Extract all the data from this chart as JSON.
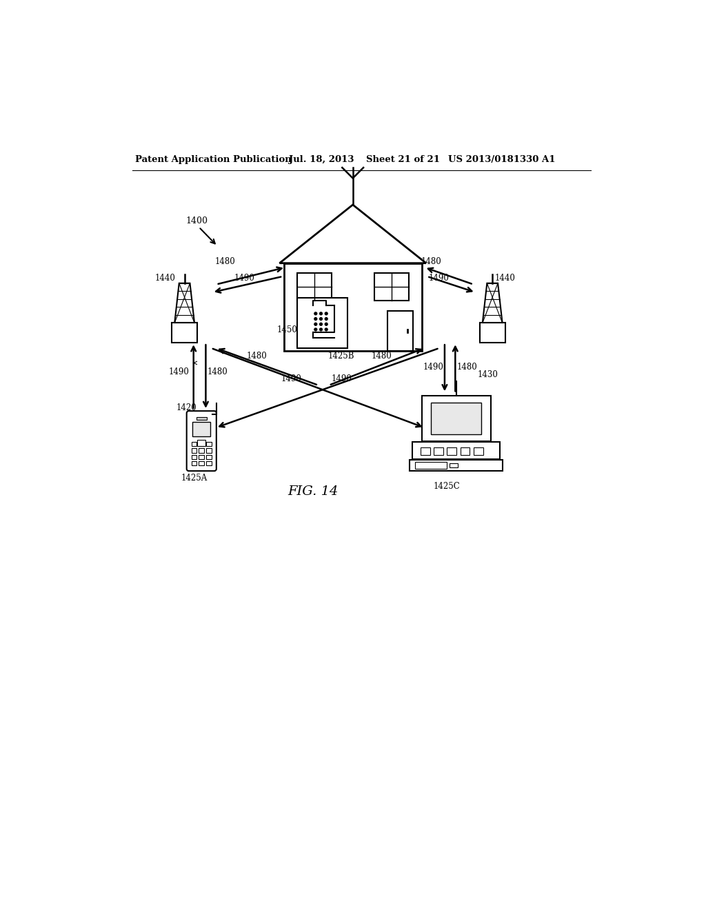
{
  "bg_color": "#ffffff",
  "header_text": "Patent Application Publication",
  "header_date": "Jul. 18, 2013",
  "header_sheet": "Sheet 21 of 21",
  "header_patent": "US 2013/0181330 A1",
  "fig_label": "FIG. 14"
}
